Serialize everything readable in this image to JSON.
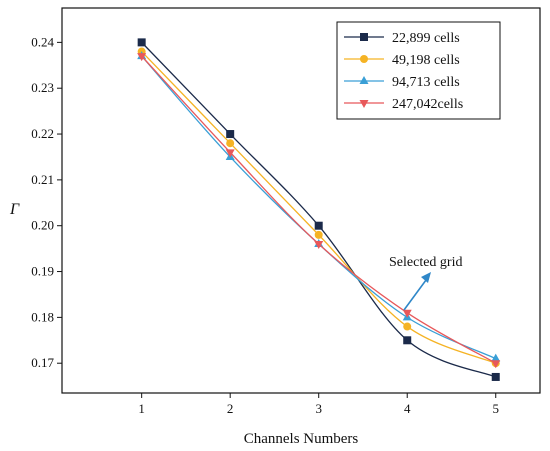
{
  "chart_data": {
    "type": "line",
    "xlabel": "Channels Numbers",
    "ylabel": "Γ",
    "x": [
      1,
      2,
      3,
      4,
      5
    ],
    "xlim": [
      0.1,
      5.5
    ],
    "ylim": [
      0.1635,
      0.2475
    ],
    "yticks": [
      0.17,
      0.18,
      0.19,
      0.2,
      0.21,
      0.22,
      0.23,
      0.24
    ],
    "yticks_labels": [
      "0.17",
      "0.18",
      "0.19",
      "0.20",
      "0.21",
      "0.22",
      "0.23",
      "0.24"
    ],
    "xticks_labels": [
      "1",
      "2",
      "3",
      "4",
      "5"
    ],
    "grid": false,
    "legend_position": "top-right",
    "series": [
      {
        "name": "22,899 cells",
        "color": "#1b2a4a",
        "marker": "square",
        "values": [
          0.24,
          0.22,
          0.2,
          0.175,
          0.167
        ]
      },
      {
        "name": "49,198 cells",
        "color": "#f5b324",
        "marker": "circle",
        "values": [
          0.238,
          0.218,
          0.198,
          0.178,
          0.17
        ]
      },
      {
        "name": "94,713 cells",
        "color": "#3a9fd6",
        "marker": "triangle-up",
        "values": [
          0.237,
          0.215,
          0.196,
          0.18,
          0.171
        ]
      },
      {
        "name": "247,042cells",
        "color": "#e8585a",
        "marker": "triangle-down",
        "values": [
          0.237,
          0.216,
          0.196,
          0.181,
          0.17
        ]
      }
    ],
    "annotation": {
      "text": "Selected grid",
      "arrow_color": "#2f87c8",
      "points_to": {
        "x": 4,
        "y": 0.181
      }
    }
  }
}
